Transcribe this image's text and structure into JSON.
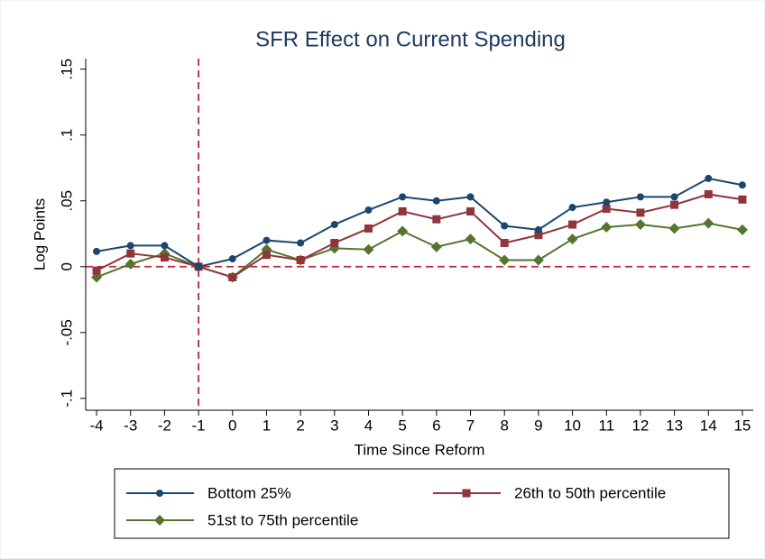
{
  "chart_data": {
    "type": "line",
    "title": "SFR Effect on Current Spending",
    "x_label": "Time Since Reform",
    "y_label": "Log Points",
    "x": [
      -4,
      -3,
      -2,
      -1,
      0,
      1,
      2,
      3,
      4,
      5,
      6,
      7,
      8,
      9,
      10,
      11,
      12,
      13,
      14,
      15
    ],
    "xlim": [
      -4.32,
      15.32
    ],
    "xticks": [
      -4,
      -3,
      -2,
      -1,
      0,
      1,
      2,
      3,
      4,
      5,
      6,
      7,
      8,
      9,
      10,
      11,
      12,
      13,
      14,
      15
    ],
    "ylim": [
      -0.109,
      0.158
    ],
    "yticks": [
      {
        "value": -0.1,
        "label": "-.1"
      },
      {
        "value": -0.05,
        "label": "-.05"
      },
      0,
      {
        "value": 0.05,
        "label": ".05"
      },
      {
        "value": 0.1,
        "label": ".1"
      },
      {
        "value": 0.15,
        "label": ".15"
      }
    ],
    "vline": -1,
    "hline": 0,
    "reference_color": "#c0243c",
    "legend": "bottom",
    "series": [
      {
        "name": "Bottom 25%",
        "color": "#1a476f",
        "marker": "circle",
        "values": [
          0.0116,
          0.016,
          0.016,
          0,
          0.006,
          0.02,
          0.018,
          0.032,
          0.043,
          0.053,
          0.05,
          0.053,
          0.031,
          0.028,
          0.045,
          0.049,
          0.053,
          0.053,
          0.067,
          0.062
        ]
      },
      {
        "name": "26th to 50th percentile",
        "color": "#90353b",
        "marker": "square",
        "values": [
          -0.003,
          0.01,
          0.007,
          0,
          -0.008,
          0.009,
          0.005,
          0.018,
          0.029,
          0.042,
          0.036,
          0.042,
          0.018,
          0.024,
          0.032,
          0.044,
          0.041,
          0.047,
          0.055,
          0.051
        ]
      },
      {
        "name": "51st to 75th percentile",
        "color": "#55752f",
        "marker": "diamond",
        "values": [
          -0.008,
          0.002,
          0.01,
          0,
          -0.008,
          0.013,
          0.005,
          0.014,
          0.013,
          0.027,
          0.015,
          0.021,
          0.005,
          0.005,
          0.021,
          0.03,
          0.032,
          0.029,
          0.033,
          0.028
        ]
      }
    ]
  }
}
